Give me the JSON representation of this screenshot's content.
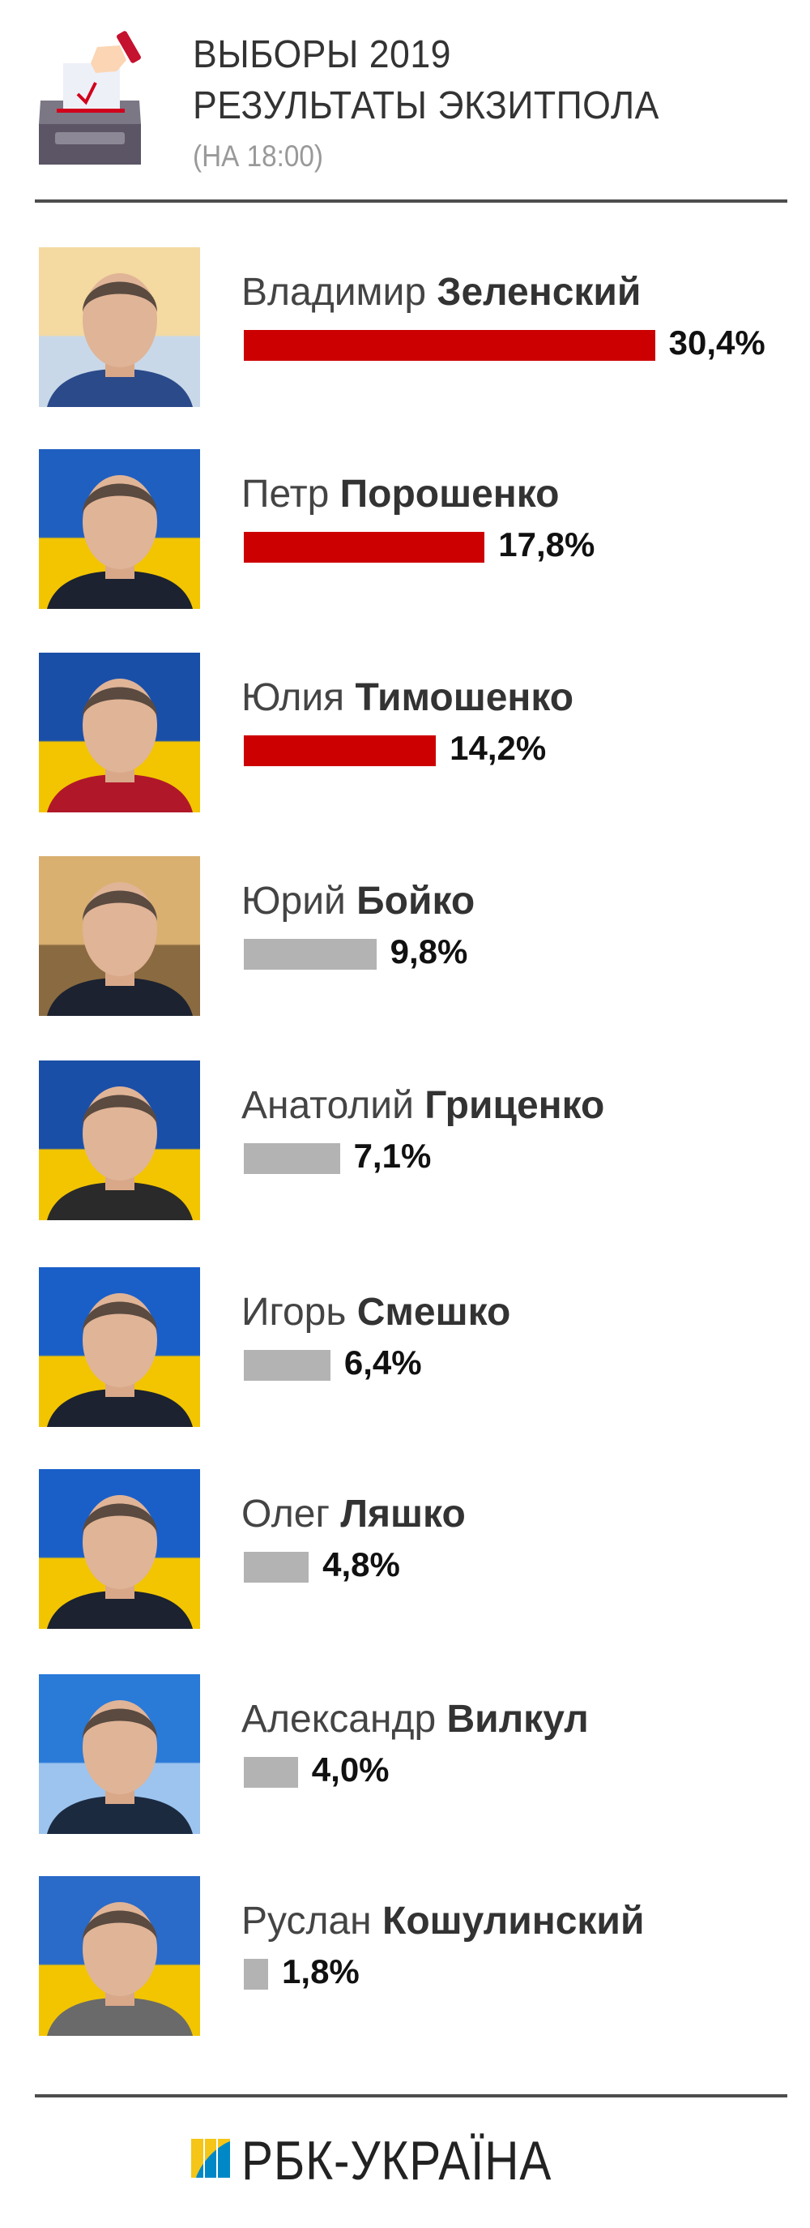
{
  "header": {
    "title_line1": "ВЫБОРЫ 2019",
    "title_line2": "РЕЗУЛЬТАТЫ ЭКЗИТПОЛА",
    "subtitle": "(НА 18:00)",
    "icon": "ballot-box-icon"
  },
  "colors": {
    "leader_bar": "#cc0000",
    "other_bar": "#b3b3b3",
    "divider": "#4d4d4d"
  },
  "chart_data": {
    "type": "bar",
    "orientation": "horizontal",
    "categories": [
      "Владимир Зеленский",
      "Петр Порошенко",
      "Юлия Тимошенко",
      "Юрий Бойко",
      "Анатолий Гриценко",
      "Игорь Смешко",
      "Олег Ляшко",
      "Александр Вилкул",
      "Руслан Кошулинский"
    ],
    "values": [
      30.4,
      17.8,
      14.2,
      9.8,
      7.1,
      6.4,
      4.8,
      4.0,
      1.8
    ],
    "unit": "%"
  },
  "candidates": [
    {
      "first": "Владимир",
      "last": "Зеленский",
      "value": 30.4,
      "label": "30,4%",
      "highlight": true,
      "bg": [
        "#f4d9a0",
        "#c8d8e8"
      ],
      "suit": "#2b4a8a"
    },
    {
      "first": "Петр",
      "last": "Порошенко",
      "value": 17.8,
      "label": "17,8%",
      "highlight": true,
      "bg": [
        "#1f5fbf",
        "#f2c500"
      ],
      "suit": "#1c2230"
    },
    {
      "first": "Юлия",
      "last": "Тимошенко",
      "value": 14.2,
      "label": "14,2%",
      "highlight": true,
      "bg": [
        "#1a4fa8",
        "#f2c500"
      ],
      "suit": "#b0182a"
    },
    {
      "first": "Юрий",
      "last": "Бойко",
      "value": 9.8,
      "label": "9,8%",
      "highlight": false,
      "bg": [
        "#d9b070",
        "#8a6a40"
      ],
      "suit": "#1c2230"
    },
    {
      "first": "Анатолий",
      "last": "Гриценко",
      "value": 7.1,
      "label": "7,1%",
      "highlight": false,
      "bg": [
        "#1a4fa8",
        "#f2c500"
      ],
      "suit": "#2a2a2a"
    },
    {
      "first": "Игорь",
      "last": "Смешко",
      "value": 6.4,
      "label": "6,4%",
      "highlight": false,
      "bg": [
        "#1a5fc8",
        "#f2c500"
      ],
      "suit": "#1c2230"
    },
    {
      "first": "Олег",
      "last": "Ляшко",
      "value": 4.8,
      "label": "4,8%",
      "highlight": false,
      "bg": [
        "#1a5fc8",
        "#f2c500"
      ],
      "suit": "#1c2230"
    },
    {
      "first": "Александр",
      "last": "Вилкул",
      "value": 4.0,
      "label": "4,0%",
      "highlight": false,
      "bg": [
        "#2a7ad8",
        "#9cc4ef"
      ],
      "suit": "#1c2a40"
    },
    {
      "first": "Руслан",
      "last": "Кошулинский",
      "value": 1.8,
      "label": "1,8%",
      "highlight": false,
      "bg": [
        "#2a6ac8",
        "#f2c500"
      ],
      "suit": "#6a6a6a"
    }
  ],
  "footer": {
    "logo_text": "РБК-УКРАЇНА"
  }
}
